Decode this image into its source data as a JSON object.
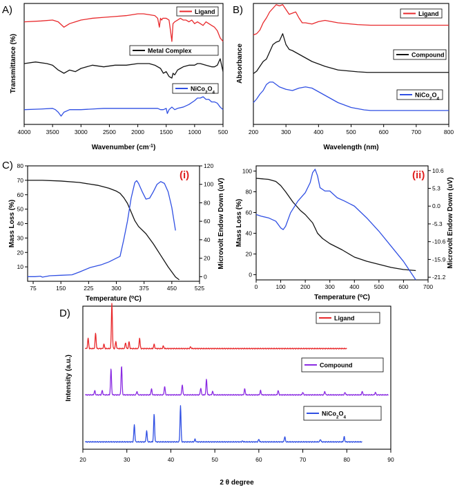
{
  "colors": {
    "red": "#e8282b",
    "black": "#111111",
    "blue": "#2f4fe3",
    "purple": "#8a2be2",
    "roman": "#e02020"
  },
  "chart_data": [
    {
      "id": "A",
      "panel_label": "A)",
      "type": "line",
      "xlabel": "Wavenumber (cm",
      "xlabel_sup": "-1",
      "xlabel_tail": ")",
      "ylabel": "Transmittance (%)",
      "xlim": [
        4000,
        500
      ],
      "xticks": [
        4000,
        3500,
        3000,
        2500,
        2000,
        1500,
        1000,
        500
      ],
      "series": [
        {
          "name": "Ligand",
          "color": "#e8282b",
          "x": [
            4000,
            3700,
            3500,
            3400,
            3300,
            3200,
            3100,
            3000,
            2800,
            2600,
            2400,
            2200,
            2000,
            1900,
            1800,
            1700,
            1650,
            1620,
            1600,
            1580,
            1560,
            1500,
            1450,
            1420,
            1400,
            1380,
            1350,
            1300,
            1250,
            1200,
            1150,
            1100,
            1050,
            1000,
            950,
            900,
            850,
            800,
            750,
            700,
            650,
            600,
            550,
            500
          ],
          "y": [
            91,
            91.5,
            92,
            91,
            88,
            90,
            91,
            92,
            93,
            93.5,
            94,
            94.5,
            95.5,
            95.5,
            95,
            94.5,
            93,
            88,
            93,
            92,
            93,
            93,
            92,
            85,
            80,
            90,
            91,
            92,
            93,
            92,
            92,
            91,
            92,
            90,
            91,
            90,
            89,
            91,
            90,
            89,
            88,
            86,
            82,
            80
          ]
        },
        {
          "name": "Metal Complex",
          "color": "#111111",
          "x": [
            4000,
            3800,
            3600,
            3500,
            3400,
            3300,
            3200,
            3100,
            3000,
            2800,
            2600,
            2400,
            2200,
            2000,
            1800,
            1700,
            1600,
            1550,
            1500,
            1450,
            1400,
            1380,
            1350,
            1300,
            1250,
            1200,
            1100,
            1000,
            950,
            900,
            800,
            700,
            650,
            600,
            550,
            500
          ],
          "y": [
            52,
            53,
            52,
            51,
            48,
            46,
            48,
            47,
            49,
            51,
            50,
            51,
            51,
            52,
            52,
            51,
            49,
            46,
            47,
            44,
            43,
            46,
            45,
            48,
            49,
            50,
            51,
            51,
            52,
            52,
            51,
            50,
            50,
            51,
            55,
            47
          ]
        },
        {
          "name": "NiCo2O4",
          "color": "#2f4fe3",
          "x": [
            4000,
            3700,
            3500,
            3450,
            3400,
            3350,
            3300,
            3200,
            3000,
            2800,
            2600,
            2400,
            2200,
            2000,
            1800,
            1650,
            1600,
            1550,
            1500,
            1480,
            1450,
            1400,
            1350,
            1300,
            1200,
            1100,
            1000,
            950,
            900,
            850,
            800,
            750,
            700,
            650,
            600,
            550,
            500
          ],
          "y": [
            12,
            12.5,
            13,
            12,
            10,
            7,
            10,
            12,
            12,
            12.5,
            13,
            13,
            13,
            13,
            13,
            13,
            12,
            12,
            13,
            9,
            12,
            14,
            12,
            13,
            14,
            16,
            19,
            21,
            21,
            22,
            20,
            20,
            18,
            18,
            17,
            14,
            12
          ]
        }
      ]
    },
    {
      "id": "B",
      "panel_label": "B)",
      "type": "line",
      "xlabel": "Wavelength (nm)",
      "ylabel": "Absorbance",
      "xlim": [
        200,
        800
      ],
      "xticks": [
        200,
        300,
        400,
        500,
        600,
        700,
        800
      ],
      "series": [
        {
          "name": "Ligand",
          "color": "#e8282b",
          "x": [
            200,
            210,
            220,
            230,
            240,
            250,
            260,
            270,
            280,
            290,
            300,
            310,
            320,
            330,
            340,
            350,
            360,
            380,
            400,
            420,
            440,
            460,
            480,
            500,
            520,
            560,
            600,
            700,
            800
          ],
          "y": [
            74,
            75,
            78,
            84,
            88,
            93,
            96,
            99,
            98,
            99,
            95,
            91,
            92,
            93,
            88,
            84,
            84,
            83,
            85,
            86,
            85,
            84,
            83.5,
            83,
            82.5,
            82,
            82,
            82,
            82
          ]
        },
        {
          "name": "Compound",
          "color": "#111111",
          "x": [
            200,
            210,
            220,
            230,
            240,
            250,
            260,
            270,
            280,
            290,
            300,
            310,
            320,
            340,
            360,
            380,
            400,
            420,
            440,
            460,
            480,
            500,
            520,
            550,
            600,
            650,
            700,
            750,
            800
          ],
          "y": [
            42,
            44,
            48,
            52,
            54,
            60,
            66,
            68,
            69,
            75,
            66,
            62,
            61,
            58,
            55,
            52,
            50,
            48,
            46.5,
            45,
            44.5,
            44,
            43.5,
            43,
            43,
            43,
            43,
            43,
            43
          ]
        },
        {
          "name": "NiCo2O4",
          "color": "#2f4fe3",
          "x": [
            200,
            210,
            220,
            230,
            240,
            250,
            260,
            270,
            280,
            290,
            300,
            320,
            340,
            360,
            380,
            400,
            420,
            440,
            460,
            480,
            500,
            520,
            540,
            560,
            600,
            700,
            800
          ],
          "y": [
            18,
            21,
            25,
            28,
            33,
            35,
            35,
            33,
            31,
            30,
            29,
            28,
            30,
            31,
            30,
            27,
            24,
            21,
            18,
            16,
            14,
            13,
            12,
            11.5,
            11.5,
            11.5,
            11.5
          ]
        }
      ]
    },
    {
      "id": "C_i",
      "panel_label": "C)",
      "tag": "(i)",
      "type": "line",
      "xlabel": "Temperature (",
      "xlabel_sup": "o",
      "xlabel_tail": "C)",
      "ylabel": "Mass Loss (%)",
      "ylabel_right": "Microvolt Endow Down (uV)",
      "xlim": [
        60,
        525
      ],
      "xticks": [
        75,
        150,
        225,
        300,
        375,
        450,
        525
      ],
      "ylim": [
        0,
        80
      ],
      "yticks": [
        10,
        20,
        30,
        40,
        50,
        60,
        70,
        80
      ],
      "ylim_right": [
        -5,
        120
      ],
      "yticks_right": [
        0,
        20,
        40,
        60,
        80,
        100,
        120
      ],
      "series": [
        {
          "name": "Mass Loss",
          "axis": "left",
          "color": "#111111",
          "x": [
            60,
            100,
            150,
            200,
            250,
            280,
            300,
            310,
            320,
            330,
            340,
            350,
            360,
            380,
            400,
            420,
            440,
            460,
            470
          ],
          "y": [
            70,
            70,
            69.5,
            68.5,
            66.5,
            64.5,
            62.5,
            61,
            58,
            54,
            48,
            42,
            38,
            33,
            26,
            18,
            10,
            3,
            1
          ]
        },
        {
          "name": "Microvolt",
          "axis": "right",
          "color": "#2f4fe3",
          "x": [
            60,
            80,
            95,
            100,
            120,
            150,
            180,
            200,
            230,
            260,
            280,
            300,
            310,
            320,
            330,
            340,
            350,
            355,
            360,
            370,
            380,
            390,
            400,
            410,
            420,
            430,
            440,
            450,
            460
          ],
          "y": [
            0,
            0,
            0.5,
            -0.5,
            1,
            1.5,
            2,
            5,
            10,
            13,
            16,
            20,
            22,
            40,
            60,
            85,
            102,
            104,
            101,
            92,
            84,
            85,
            92,
            100,
            103,
            101,
            92,
            75,
            50
          ]
        }
      ]
    },
    {
      "id": "C_ii",
      "tag": "(ii)",
      "type": "line",
      "xlabel": "Temperature (",
      "xlabel_sup": "o",
      "xlabel_tail": "C)",
      "ylabel": "Mass Loss (%)",
      "ylabel_right": "Microvolt Endow Down (uV)",
      "xlim": [
        0,
        700
      ],
      "xticks": [
        0,
        100,
        200,
        300,
        400,
        500,
        600,
        700
      ],
      "ylim": [
        -5,
        105
      ],
      "yticks": [
        0,
        20,
        40,
        60,
        80,
        100
      ],
      "ylim_right": [
        -22,
        12
      ],
      "yticks_right": [
        10.6,
        5.3,
        0.0,
        -5.3,
        -10.6,
        -15.9,
        -21.2
      ],
      "yticklabels_right": [
        "10.6",
        "5.3",
        "0.0",
        "-5.3",
        "-10.6",
        "-15.9",
        "-21.2"
      ],
      "series": [
        {
          "name": "Mass Loss",
          "axis": "left",
          "color": "#111111",
          "x": [
            0,
            50,
            80,
            100,
            120,
            150,
            180,
            200,
            230,
            250,
            270,
            300,
            350,
            400,
            450,
            500,
            550,
            600,
            650
          ],
          "y": [
            93,
            92,
            90,
            86,
            80,
            70,
            62,
            58,
            50,
            40,
            35,
            30,
            24,
            17,
            13,
            10,
            7,
            5,
            4
          ]
        },
        {
          "name": "Microvolt",
          "axis": "right",
          "color": "#2f4fe3",
          "x": [
            0,
            20,
            50,
            80,
            100,
            110,
            120,
            140,
            170,
            200,
            220,
            230,
            240,
            250,
            260,
            280,
            300,
            330,
            360,
            400,
            450,
            500,
            550,
            600,
            650
          ],
          "y": [
            -2.5,
            -3,
            -3.5,
            -4.5,
            -6.5,
            -7,
            -6,
            -2,
            1.5,
            4,
            7,
            10,
            11,
            9,
            5.5,
            4.5,
            4.5,
            2.5,
            1.5,
            0,
            -3.5,
            -7.5,
            -12,
            -16.5,
            -22
          ]
        }
      ]
    },
    {
      "id": "D",
      "panel_label": "D)",
      "type": "line",
      "xlabel": "2 θ degree",
      "ylabel": "Intensity (a.u.)",
      "xlim": [
        20,
        90
      ],
      "xticks": [
        20,
        30,
        40,
        50,
        60,
        70,
        80,
        90
      ],
      "series": [
        {
          "name": "Ligand",
          "color": "#e8282b",
          "offset": 62,
          "range": [
            20.5,
            80
          ],
          "peaks": [
            [
              21.2,
              12
            ],
            [
              22.9,
              18
            ],
            [
              24.8,
              5
            ],
            [
              26.6,
              53
            ],
            [
              27.5,
              8
            ],
            [
              29.7,
              7
            ],
            [
              30.5,
              8
            ],
            [
              32.9,
              12
            ],
            [
              36.2,
              5
            ],
            [
              38.3,
              3
            ],
            [
              44.5,
              2
            ]
          ]
        },
        {
          "name": "Compound",
          "color": "#8a2be2",
          "offset": 32,
          "range": [
            20.5,
            89.5
          ],
          "peaks": [
            [
              22.7,
              5
            ],
            [
              24.4,
              5
            ],
            [
              26.4,
              30
            ],
            [
              28.8,
              34
            ],
            [
              32.3,
              4
            ],
            [
              35.6,
              7
            ],
            [
              38.6,
              10
            ],
            [
              42.6,
              12
            ],
            [
              46.8,
              8
            ],
            [
              48.1,
              18
            ],
            [
              49.5,
              4
            ],
            [
              56.8,
              7
            ],
            [
              60.4,
              5
            ],
            [
              64.4,
              5
            ],
            [
              70,
              3
            ],
            [
              75,
              4
            ],
            [
              79.6,
              3
            ],
            [
              83.5,
              4
            ],
            [
              86.5,
              3
            ]
          ]
        },
        {
          "name": "NiCo2O4",
          "color": "#2f4fe3",
          "offset": 0,
          "range": [
            20.5,
            83.5
          ],
          "peaks": [
            [
              31.7,
              20
            ],
            [
              34.5,
              13
            ],
            [
              36.2,
              32
            ],
            [
              42.2,
              42
            ],
            [
              45.5,
              3
            ],
            [
              56.3,
              1
            ],
            [
              60,
              3
            ],
            [
              65.9,
              6
            ],
            [
              74,
              3
            ],
            [
              79.4,
              6
            ]
          ]
        }
      ]
    }
  ]
}
